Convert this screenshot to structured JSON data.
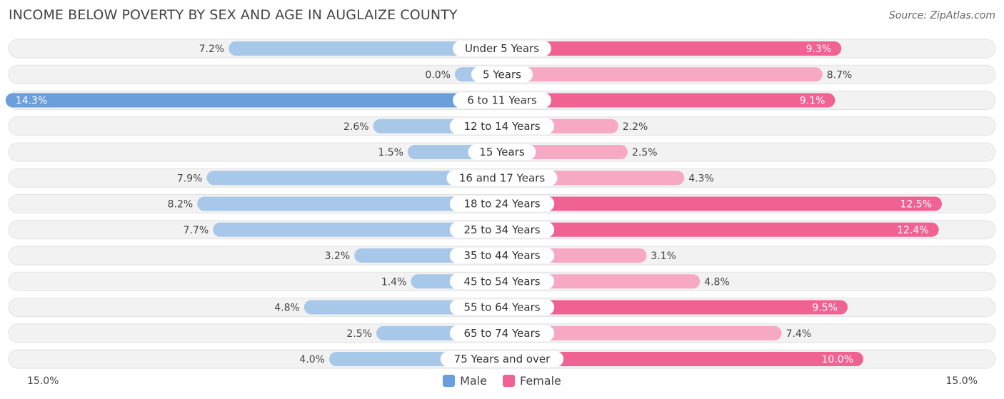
{
  "title": "INCOME BELOW POVERTY BY SEX AND AGE IN AUGLAIZE COUNTY",
  "source": "Source: ZipAtlas.com",
  "colors": {
    "male_strong": "#6a9fdc",
    "male_light": "#a8c8ea",
    "female_strong": "#f06292",
    "female_light": "#f7a8c2",
    "row_bg": "#f2f2f2",
    "row_border": "#e2e2e2"
  },
  "axis": {
    "left_label": "15.0%",
    "right_label": "15.0%"
  },
  "legend": {
    "male": "Male",
    "female": "Female"
  },
  "chart_data": {
    "type": "bar",
    "orientation": "horizontal-diverging",
    "title": "INCOME BELOW POVERTY BY SEX AND AGE IN AUGLAIZE COUNTY",
    "xlim": [
      -15,
      15
    ],
    "categories": [
      "Under 5 Years",
      "5 Years",
      "6 to 11 Years",
      "12 to 14 Years",
      "15 Years",
      "16 and 17 Years",
      "18 to 24 Years",
      "25 to 34 Years",
      "35 to 44 Years",
      "45 to 54 Years",
      "55 to 64 Years",
      "65 to 74 Years",
      "75 Years and over"
    ],
    "series": [
      {
        "name": "Male",
        "values": [
          7.2,
          0.0,
          14.3,
          2.6,
          1.5,
          7.9,
          8.2,
          7.7,
          3.2,
          1.4,
          4.8,
          2.5,
          4.0
        ],
        "labels": [
          "7.2%",
          "0.0%",
          "14.3%",
          "2.6%",
          "1.5%",
          "7.9%",
          "8.2%",
          "7.7%",
          "3.2%",
          "1.4%",
          "4.8%",
          "2.5%",
          "4.0%"
        ]
      },
      {
        "name": "Female",
        "values": [
          9.3,
          8.7,
          9.1,
          2.2,
          2.5,
          4.3,
          12.5,
          12.4,
          3.1,
          4.8,
          9.5,
          7.4,
          10.0
        ],
        "labels": [
          "9.3%",
          "8.7%",
          "9.1%",
          "2.2%",
          "2.5%",
          "4.3%",
          "12.5%",
          "12.4%",
          "3.1%",
          "4.8%",
          "9.5%",
          "7.4%",
          "10.0%"
        ]
      }
    ]
  }
}
